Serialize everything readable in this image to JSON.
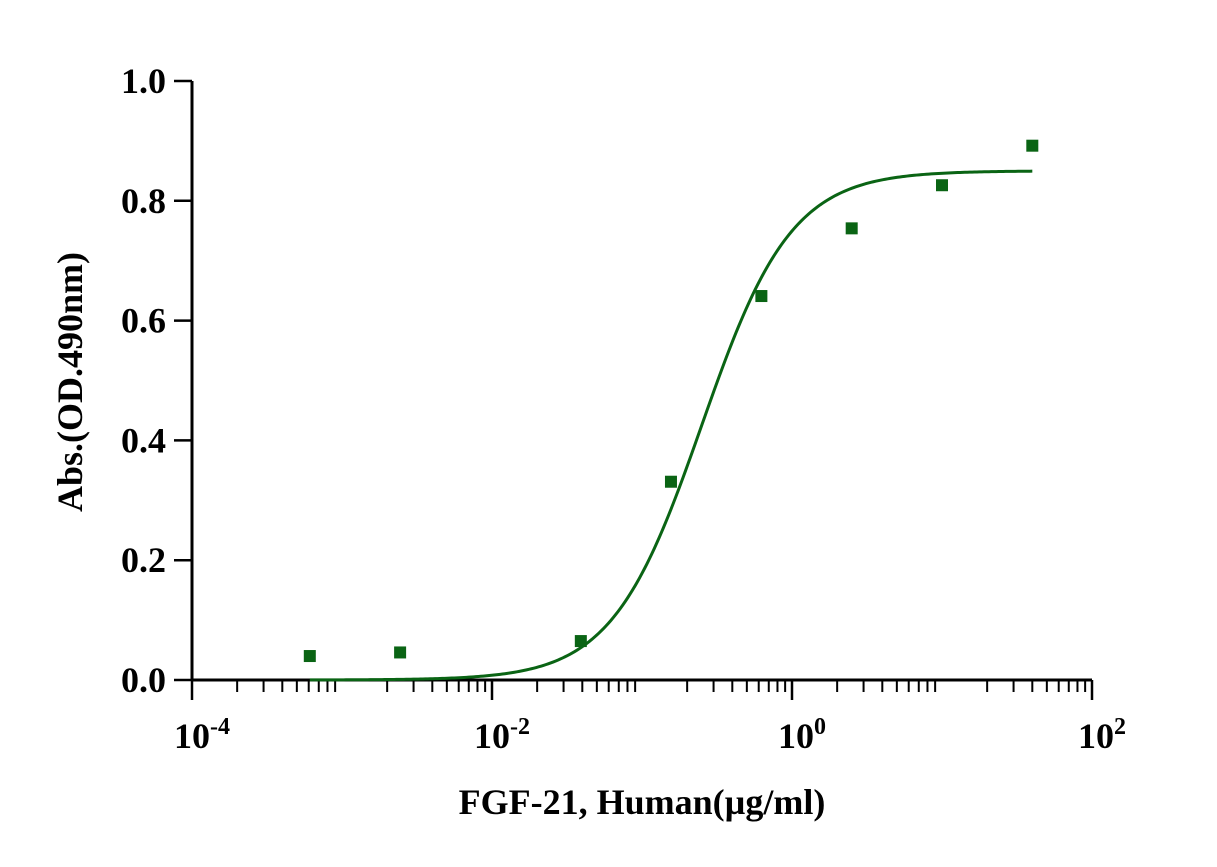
{
  "chart_data": {
    "type": "scatter",
    "xlabel": "FGF-21, Human(µg/ml)",
    "ylabel": "Abs.(OD.490nm)",
    "xscale": "log",
    "xlim": [
      0.0001,
      100
    ],
    "ylim": [
      0.0,
      1.0
    ],
    "x_ticks": [
      {
        "value": 0.0001,
        "base": "10",
        "exp": "-4"
      },
      {
        "value": 0.01,
        "base": "10",
        "exp": "-2"
      },
      {
        "value": 1,
        "base": "10",
        "exp": "0"
      },
      {
        "value": 100,
        "base": "10",
        "exp": "2"
      }
    ],
    "y_ticks": [
      "0.0",
      "0.2",
      "0.4",
      "0.6",
      "0.8",
      "1.0"
    ],
    "grid": false,
    "colors": {
      "series": "#0a6414",
      "axis": "#000000"
    },
    "series": [
      {
        "points": [
          {
            "x": 0.00061,
            "y": 0.04
          },
          {
            "x": 0.00244,
            "y": 0.046
          },
          {
            "x": 0.0391,
            "y": 0.065
          },
          {
            "x": 0.156,
            "y": 0.331
          },
          {
            "x": 0.625,
            "y": 0.641
          },
          {
            "x": 2.5,
            "y": 0.754
          },
          {
            "x": 10,
            "y": 0.826
          },
          {
            "x": 40,
            "y": 0.892
          }
        ],
        "fit": {
          "model": "4PL",
          "bottom": 0.0,
          "top": 0.85,
          "ec50": 0.25,
          "hill": 1.45,
          "x_range": [
            0.00061,
            40
          ]
        }
      }
    ]
  }
}
